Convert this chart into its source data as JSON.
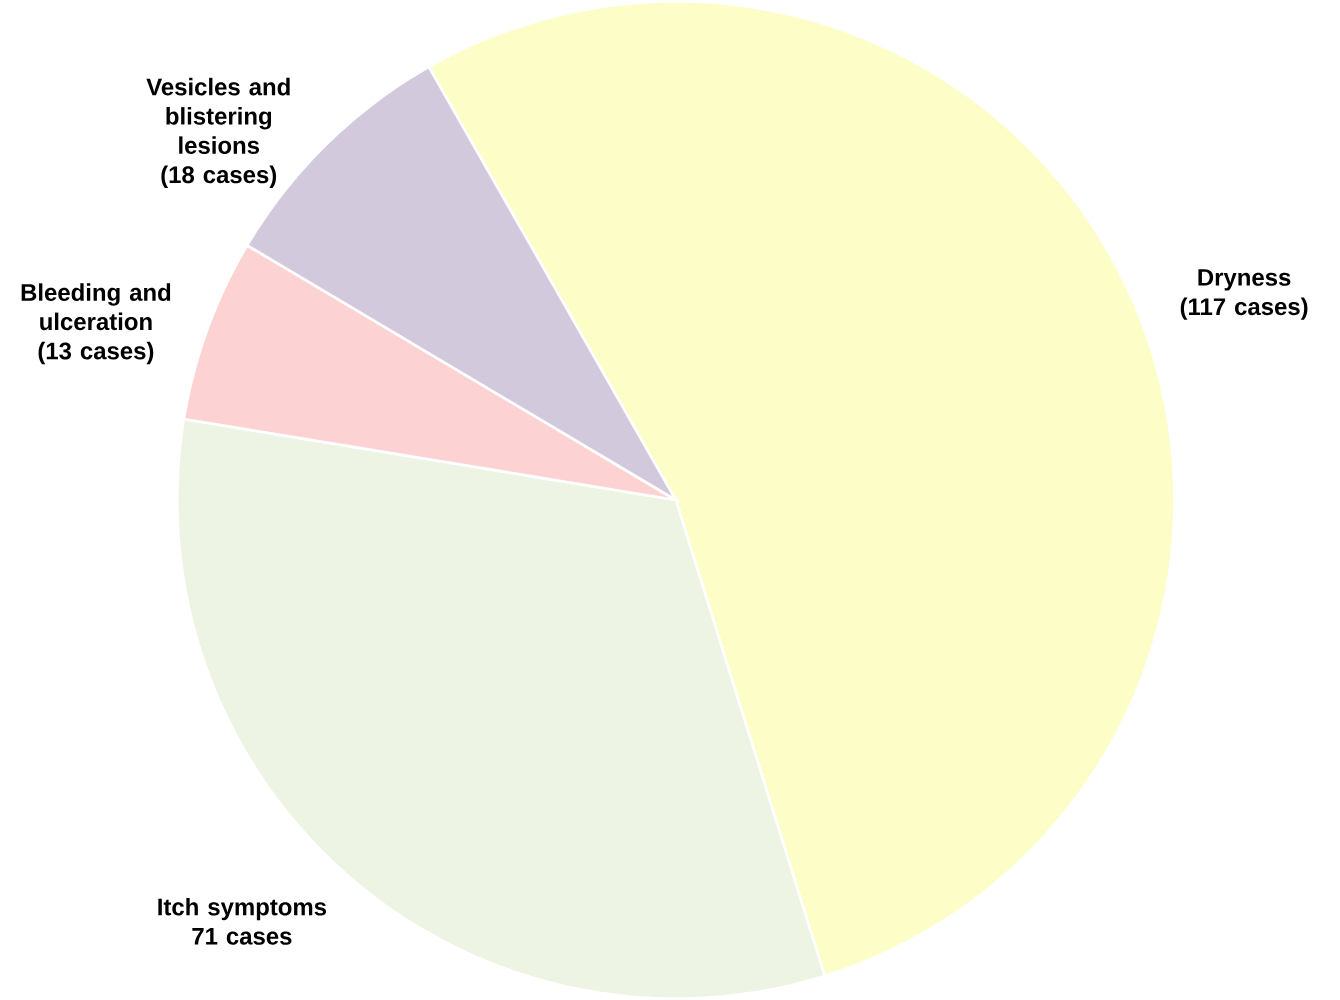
{
  "chart_data": {
    "type": "pie",
    "categories": [
      "Dryness (117 cases)",
      "Itch symptoms 71 cases",
      "Bleeding and ulceration (13 cases)",
      "Vesicles and blistering lesions (18 cases)"
    ],
    "values": [
      117,
      71,
      13,
      18
    ],
    "colors": [
      "#fdfdc8",
      "#eef4e4",
      "#fcd2d2",
      "#d2c9dc"
    ]
  }
}
